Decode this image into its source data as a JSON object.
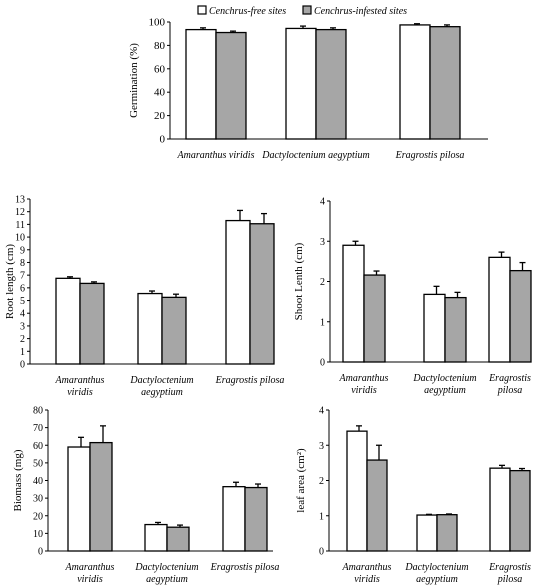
{
  "colors": {
    "free": "#ffffff",
    "infested": "#a6a6a6",
    "stroke": "#000000"
  },
  "legend": {
    "free": "Cenchrus-free sites",
    "infested": "Cenchrus-infested sites"
  },
  "chart_data": [
    {
      "type": "bar",
      "title": "",
      "ylabel": "Germination (%)",
      "ylim": [
        0,
        100
      ],
      "yticks": [
        "0",
        "20",
        "40",
        "60",
        "80",
        "100"
      ],
      "categories": [
        [
          "Amaranthus viridis"
        ],
        [
          "Dactyloctenium aegyptium"
        ],
        [
          "Eragrostis pilosa"
        ]
      ],
      "series": [
        {
          "name": "Cenchrus-free sites",
          "values": [
            93.5,
            94.5,
            97.5
          ],
          "errors": [
            1.5,
            2,
            1
          ]
        },
        {
          "name": "Cenchrus-infested sites",
          "values": [
            91,
            93.5,
            96
          ],
          "errors": [
            1.2,
            1.5,
            1.5
          ]
        }
      ],
      "legend_position": "top"
    },
    {
      "type": "bar",
      "ylabel": "Root length (cm)",
      "ylim": [
        0,
        13
      ],
      "yticks": [
        "0",
        "1",
        "2",
        "3",
        "4",
        "5",
        "6",
        "7",
        "8",
        "9",
        "10",
        "11",
        "12",
        "13"
      ],
      "categories": [
        [
          "Amaranthus",
          "viridis"
        ],
        [
          "Dactyloctenium",
          "aegyptium"
        ],
        [
          "Eragrostis pilosa"
        ]
      ],
      "series": [
        {
          "name": "Cenchrus-free sites",
          "values": [
            6.75,
            5.55,
            11.3
          ],
          "errors": [
            0.12,
            0.2,
            0.8
          ]
        },
        {
          "name": "Cenchrus-infested sites",
          "values": [
            6.35,
            5.25,
            11.05
          ],
          "errors": [
            0.12,
            0.25,
            0.8
          ]
        }
      ]
    },
    {
      "type": "bar",
      "ylabel": "Shoot Lenth (cm)",
      "ylim": [
        0,
        4
      ],
      "yticks": [
        "0",
        "1",
        "2",
        "3",
        "4"
      ],
      "categories": [
        [
          "Amaranthus",
          "viridis"
        ],
        [
          "Dactyloctenium",
          "aegyptium"
        ],
        [
          "Eragrostis",
          "pilosa"
        ]
      ],
      "series": [
        {
          "name": "Cenchrus-free sites",
          "values": [
            2.9,
            1.68,
            2.6
          ],
          "errors": [
            0.1,
            0.2,
            0.13
          ]
        },
        {
          "name": "Cenchrus-infested sites",
          "values": [
            2.16,
            1.6,
            2.27
          ],
          "errors": [
            0.1,
            0.13,
            0.2
          ]
        }
      ]
    },
    {
      "type": "bar",
      "ylabel": "Biomass (mg)",
      "ylim": [
        0,
        80
      ],
      "yticks": [
        "0",
        "10",
        "20",
        "30",
        "40",
        "50",
        "60",
        "70",
        "80"
      ],
      "categories": [
        [
          "Amaranthus",
          "viridis"
        ],
        [
          "Dactyloctenium",
          "aegyptium"
        ],
        [
          "Eragrostis pilosa"
        ]
      ],
      "series": [
        {
          "name": "Cenchrus-free sites",
          "values": [
            59,
            15,
            36.5
          ],
          "errors": [
            5.5,
            1.2,
            2.5
          ]
        },
        {
          "name": "Cenchrus-infested sites",
          "values": [
            61.5,
            13.5,
            36
          ],
          "errors": [
            9.5,
            1.2,
            2
          ]
        }
      ]
    },
    {
      "type": "bar",
      "ylabel": "leaf area (cm²)",
      "ylim": [
        0,
        4
      ],
      "yticks": [
        "0",
        "1",
        "2",
        "3",
        "4"
      ],
      "categories": [
        [
          "Amaranthus",
          "viridis"
        ],
        [
          "Dactyloctenium",
          "aegyptium"
        ],
        [
          "Eragrostis",
          "pilosa"
        ]
      ],
      "series": [
        {
          "name": "Cenchrus-free sites",
          "values": [
            3.4,
            1.02,
            2.35
          ],
          "errors": [
            0.15,
            0.02,
            0.08
          ]
        },
        {
          "name": "Cenchrus-infested sites",
          "values": [
            2.58,
            1.03,
            2.28
          ],
          "errors": [
            0.42,
            0.02,
            0.06
          ]
        }
      ]
    }
  ]
}
